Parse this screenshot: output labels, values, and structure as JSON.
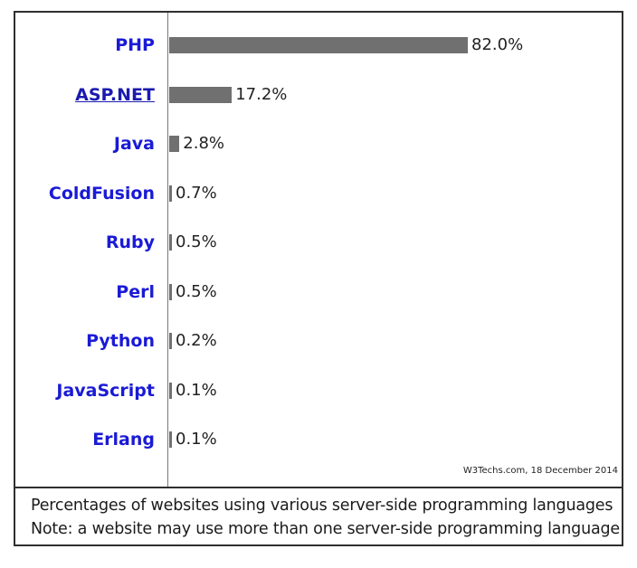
{
  "chart_data": {
    "type": "bar",
    "orientation": "horizontal",
    "categories": [
      "PHP",
      "ASP.NET",
      "Java",
      "ColdFusion",
      "Ruby",
      "Perl",
      "Python",
      "JavaScript",
      "Erlang"
    ],
    "values": [
      82.0,
      17.2,
      2.8,
      0.7,
      0.5,
      0.5,
      0.2,
      0.1,
      0.1
    ],
    "value_labels": [
      "82.0%",
      "17.2%",
      "2.8%",
      "0.7%",
      "0.5%",
      "0.5%",
      "0.2%",
      "0.1%",
      "0.1%"
    ],
    "linked_categories": [
      "ASP.NET"
    ],
    "xlim": [
      0,
      100
    ],
    "grid": false,
    "colors": {
      "bar": "#707070",
      "category_label": "#1a1ad6",
      "frame": "#2f2f2f"
    },
    "source": "W3Techs.com, 18 December 2014"
  },
  "caption": {
    "line1": "Percentages of websites using various server-side programming languages",
    "line2": "Note: a website may use more than one server-side programming language"
  }
}
